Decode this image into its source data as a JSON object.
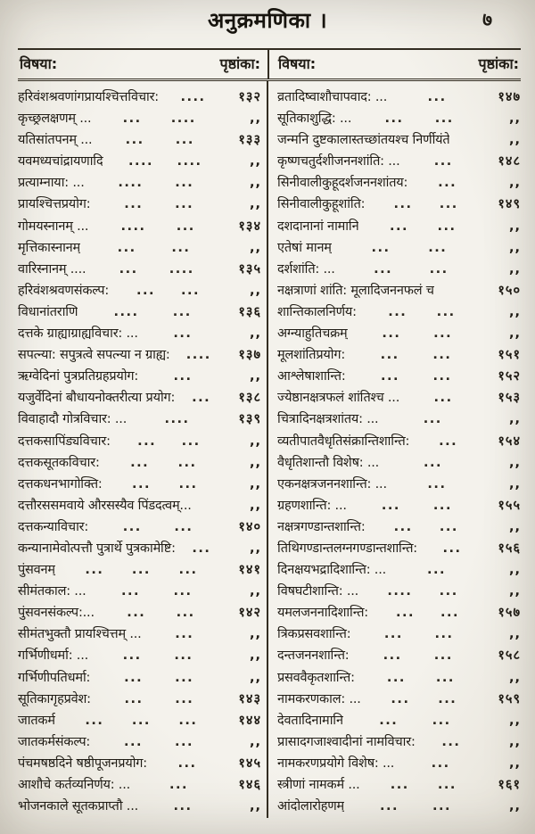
{
  "page": {
    "title": "अनुक्रमणिका ।",
    "folio": "७"
  },
  "table": {
    "headers": {
      "subject": "विषया:",
      "pageno": "पृष्ठांका:"
    },
    "ditto_mark": ",,",
    "left_entries": [
      {
        "t": "हरिवंशश्रवणांगप्रायश्चित्तविचार:",
        "d": [
          "...."
        ],
        "p": "१३२"
      },
      {
        "t": "कृच्छ्रलक्षणम् ...",
        "d": [
          "...",
          "...."
        ],
        "p": ",,"
      },
      {
        "t": "यतिसांतपनम् ...",
        "d": [
          "...",
          "..."
        ],
        "p": "१३३"
      },
      {
        "t": "यवमध्यचांद्रायणादि",
        "d": [
          "....",
          "...."
        ],
        "p": ",,"
      },
      {
        "t": "प्रत्याम्नाया: ...",
        "d": [
          "....",
          "..."
        ],
        "p": ",,"
      },
      {
        "t": "प्रायश्चित्तप्रयोग:",
        "d": [
          "...",
          "..."
        ],
        "p": ",,"
      },
      {
        "t": "गोमयस्नानम् ...",
        "d": [
          "....",
          "..."
        ],
        "p": "१३४"
      },
      {
        "t": "मृत्तिकास्नानम्",
        "d": [
          "...",
          "..."
        ],
        "p": ",,"
      },
      {
        "t": "वारिस्नानम् ....",
        "d": [
          "...",
          "...."
        ],
        "p": "१३५"
      },
      {
        "t": "हरिवंशश्रवणसंकल्प:",
        "d": [
          "...",
          "..."
        ],
        "p": ",,"
      },
      {
        "t": "विधानांतराणि",
        "d": [
          "....",
          "..."
        ],
        "p": "१३६"
      },
      {
        "t": "दत्तके ग्राह्याग्राह्यविचार: ...",
        "d": [
          "..."
        ],
        "p": ",,"
      },
      {
        "t": "सपत्न्या: सपुत्रत्वे सपत्न्या न ग्राह्य:",
        "d": [
          "...."
        ],
        "p": "१३७"
      },
      {
        "t": "ऋग्वेदिनां पुत्रप्रतिग्रहप्रयोग:",
        "d": [
          "..."
        ],
        "p": ",,"
      },
      {
        "t": "यजुर्वेदिनां बौधायनोक्तरीत्या प्रयोग:",
        "d": [
          "..."
        ],
        "p": "१३८"
      },
      {
        "t": "विवाहादौ गोत्रविचार: ...",
        "d": [
          "...."
        ],
        "p": "१३९"
      },
      {
        "t": "दत्तकसापिंड्यविचार:",
        "d": [
          "...",
          "..."
        ],
        "p": ",,"
      },
      {
        "t": "दत्तकसूतकविचार:",
        "d": [
          "...",
          "..."
        ],
        "p": ",,"
      },
      {
        "t": "दत्तकधनभागोक्ति:",
        "d": [
          "...",
          "..."
        ],
        "p": ",,"
      },
      {
        "t": "दत्तौरससमवाये औरसस्यैव पिंडदत्वम्...",
        "d": [],
        "p": ",,"
      },
      {
        "t": "दत्तकन्याविचार:",
        "d": [
          "...",
          "..."
        ],
        "p": "१४०"
      },
      {
        "t": "कन्यानामेवोत्पत्तौ पुत्रार्थे पुत्रकामेष्टि:",
        "d": [
          "..."
        ],
        "p": ",,"
      },
      {
        "t": "पुंसवनम्",
        "d": [
          "...",
          "...",
          "..."
        ],
        "p": "१४१"
      },
      {
        "t": "सीमंतकाल: ...",
        "d": [
          "...",
          "..."
        ],
        "p": ",,"
      },
      {
        "t": "पुंसवनसंकल्प:...",
        "d": [
          "...",
          "..."
        ],
        "p": "१४२"
      },
      {
        "t": "सीमंतभुक्तौ प्रायश्चित्तम् ...",
        "d": [
          "..."
        ],
        "p": ",,"
      },
      {
        "t": "गर्भिणीधर्मा: ...",
        "d": [
          "...",
          "..."
        ],
        "p": ",,"
      },
      {
        "t": "गर्भिणीपतिधर्मा:",
        "d": [
          "...",
          "..."
        ],
        "p": ",,"
      },
      {
        "t": "सूतिकागृहप्रवेश:",
        "d": [
          "...",
          "..."
        ],
        "p": "१४३"
      },
      {
        "t": "जातकर्म",
        "d": [
          "...",
          "...",
          "..."
        ],
        "p": "१४४"
      },
      {
        "t": "जातकर्मसंकल्प:",
        "d": [
          "...",
          "..."
        ],
        "p": ",,"
      },
      {
        "t": "पंचमषष्ठदिने षष्ठीपूजनप्रयोग:",
        "d": [
          "..."
        ],
        "p": "१४५"
      },
      {
        "t": "आशौचे कर्तव्यनिर्णय: ...",
        "d": [
          "..."
        ],
        "p": "१४६"
      },
      {
        "t": "भोजनकाले सूतकप्राप्तौ ...",
        "d": [
          "..."
        ],
        "p": ",,"
      }
    ],
    "right_entries": [
      {
        "t": "व्रतादिष्वाशौचापवाद: ...",
        "d": [
          "..."
        ],
        "p": "१४७"
      },
      {
        "t": "सूतिकाशुद्धि: ...",
        "d": [
          "...",
          "..."
        ],
        "p": ",,"
      },
      {
        "t": "जन्मनि दुष्टकालास्तच्छांतयश्च निर्णीयंते",
        "d": [],
        "p": ",,"
      },
      {
        "t": "कृष्णचतुर्दशीजननशांति: ...",
        "d": [
          "..."
        ],
        "p": "१४८"
      },
      {
        "t": "सिनीवालीकुहूदर्शजननशांतय:",
        "d": [
          "..."
        ],
        "p": ",,"
      },
      {
        "t": "सिनीवालीकुहूशांति:",
        "d": [
          "...",
          "..."
        ],
        "p": "१४९"
      },
      {
        "t": "दशदानानां नामानि",
        "d": [
          "...",
          "..."
        ],
        "p": ",,"
      },
      {
        "t": "एतेषां मानम्",
        "d": [
          "...",
          "..."
        ],
        "p": ",,"
      },
      {
        "t": "दर्शशांति: ...",
        "d": [
          "...",
          "..."
        ],
        "p": ",,"
      },
      {
        "t": "नक्षत्राणां शांति: मूलादिजननफलं च",
        "d": [],
        "p": "१५०"
      },
      {
        "t": "शान्तिकालनिर्णय:",
        "d": [
          "...",
          "..."
        ],
        "p": ",,"
      },
      {
        "t": "अग्न्याहुतिचक्रम्",
        "d": [
          "...",
          "..."
        ],
        "p": ",,"
      },
      {
        "t": "मूलशांतिप्रयोग:",
        "d": [
          "...",
          "..."
        ],
        "p": "१५१"
      },
      {
        "t": "आश्लेषाशान्ति:",
        "d": [
          "...",
          "..."
        ],
        "p": "१५२"
      },
      {
        "t": "ज्येष्ठानक्षत्रफलं शांतिश्च ...",
        "d": [
          "..."
        ],
        "p": "१५३"
      },
      {
        "t": "चित्रादिनक्षत्रशांतय: ...",
        "d": [
          "..."
        ],
        "p": ",,"
      },
      {
        "t": "व्यतीपातवैधृतिसंक्रान्तिशान्ति:",
        "d": [
          "..."
        ],
        "p": "१५४"
      },
      {
        "t": "वैधृतिशान्तौ विशेष: ...",
        "d": [
          "..."
        ],
        "p": ",,"
      },
      {
        "t": "एकनक्षत्रजननशान्ति: ...",
        "d": [
          "..."
        ],
        "p": ",,"
      },
      {
        "t": "ग्रहणशान्ति: ...",
        "d": [
          "...",
          "..."
        ],
        "p": "१५५"
      },
      {
        "t": "नक्षत्रगण्डान्तशान्ति:",
        "d": [
          "...",
          "..."
        ],
        "p": ",,"
      },
      {
        "t": "तिथिगण्डान्तलग्नगण्डान्तशान्ति:",
        "d": [
          "..."
        ],
        "p": "१५६"
      },
      {
        "t": "दिनक्षयभद्रादिशान्ति: ...",
        "d": [
          "..."
        ],
        "p": ",,"
      },
      {
        "t": "विषघटीशान्ति: ...",
        "d": [
          "....",
          "..."
        ],
        "p": ",,"
      },
      {
        "t": "यमलजननादिशान्ति:",
        "d": [
          "...",
          "..."
        ],
        "p": "१५७"
      },
      {
        "t": "त्रिकप्रसवशान्ति:",
        "d": [
          "...",
          "..."
        ],
        "p": ",,"
      },
      {
        "t": "दन्तजननशान्ति:",
        "d": [
          "...",
          "..."
        ],
        "p": "१५८"
      },
      {
        "t": "प्रसववैकृतशान्ति:",
        "d": [
          "...",
          "..."
        ],
        "p": ",,"
      },
      {
        "t": "नामकरणकाल: ...",
        "d": [
          "...",
          "..."
        ],
        "p": "१५९"
      },
      {
        "t": "देवतादिनामानि",
        "d": [
          "...",
          "..."
        ],
        "p": ",,"
      },
      {
        "t": "प्रासादगजाश्वादीनां नामविचार:",
        "d": [
          "..."
        ],
        "p": ",,"
      },
      {
        "t": "नामकरणप्रयोगे विशेष: ...",
        "d": [
          "..."
        ],
        "p": ",,"
      },
      {
        "t": "स्त्रीणां नामकर्म ...",
        "d": [
          "...",
          "..."
        ],
        "p": "१६१"
      },
      {
        "t": "आंदोलारोहणम्",
        "d": [
          "...",
          "..."
        ],
        "p": ",,"
      }
    ]
  }
}
